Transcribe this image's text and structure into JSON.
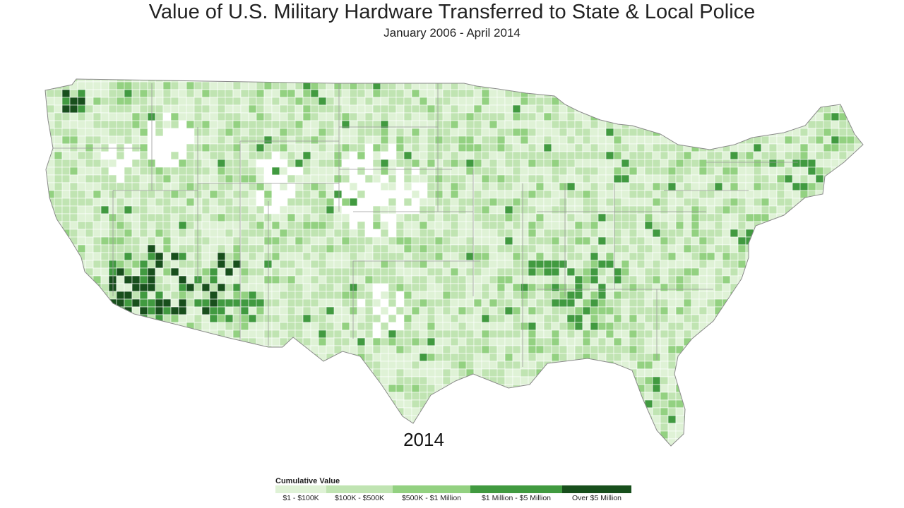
{
  "title": "Value of U.S. Military Hardware Transferred to State & Local Police",
  "subtitle": "January 2006 - April 2014",
  "year": "2014",
  "legend": {
    "title": "Cumulative Value",
    "items": [
      {
        "label": "$1 - $100K",
        "color": "#dff2d6"
      },
      {
        "label": "$100K - $500K",
        "color": "#c0e4b2"
      },
      {
        "label": "$500K - $1 Million",
        "color": "#93d181"
      },
      {
        "label": "$1 Million - $5 Million",
        "color": "#419a40"
      },
      {
        "label": "Over $5 Million",
        "color": "#184f1c"
      }
    ]
  },
  "map": {
    "region": "Contiguous United States, counties",
    "palette": [
      "#ffffff",
      "#dff2d6",
      "#c0e4b2",
      "#93d181",
      "#419a40",
      "#184f1c"
    ]
  }
}
